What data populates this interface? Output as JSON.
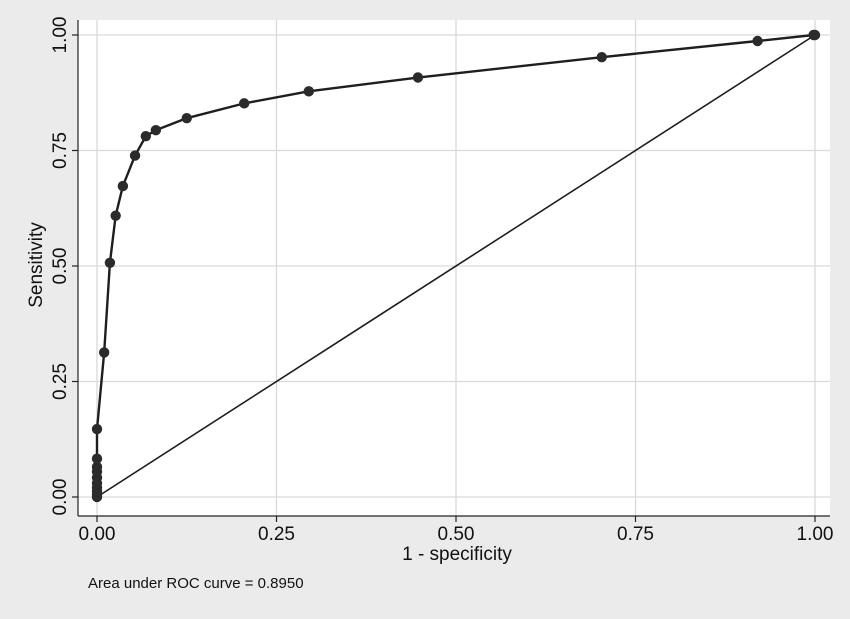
{
  "chart_data": {
    "type": "line",
    "title": "",
    "xlabel": "1 - specificity",
    "ylabel": "Sensitivity",
    "xlim": [
      0,
      1
    ],
    "ylim": [
      0,
      1
    ],
    "x_ticks": [
      "0.00",
      "0.25",
      "0.50",
      "0.75",
      "1.00"
    ],
    "y_ticks": [
      "0.00",
      "0.25",
      "0.50",
      "0.75",
      "1.00"
    ],
    "grid": true,
    "legend": "none",
    "note": "Area under ROC curve = 0.8950",
    "series": [
      {
        "marker": "circle",
        "x": [
          0.0,
          0.0,
          0.0,
          0.0,
          0.0,
          0.0,
          0.0,
          0.0,
          0.0,
          0.0,
          0.01,
          0.018,
          0.026,
          0.036,
          0.053,
          0.068,
          0.082,
          0.125,
          0.205,
          0.295,
          0.447,
          0.703,
          0.92,
          0.998,
          1.0
        ],
        "y": [
          0.0,
          0.005,
          0.012,
          0.02,
          0.03,
          0.042,
          0.055,
          0.065,
          0.083,
          0.147,
          0.313,
          0.507,
          0.609,
          0.673,
          0.739,
          0.781,
          0.794,
          0.82,
          0.852,
          0.878,
          0.908,
          0.952,
          0.987,
          1.0,
          1.0
        ]
      },
      {
        "marker": "none",
        "x": [
          0,
          1
        ],
        "y": [
          0,
          1
        ]
      }
    ]
  },
  "colors": {
    "background": "#ebebeb",
    "plot_area": "#ffffff",
    "grid": "#d9d9d9",
    "line": "#1e1e1e",
    "marker": "#2b2b2b"
  }
}
